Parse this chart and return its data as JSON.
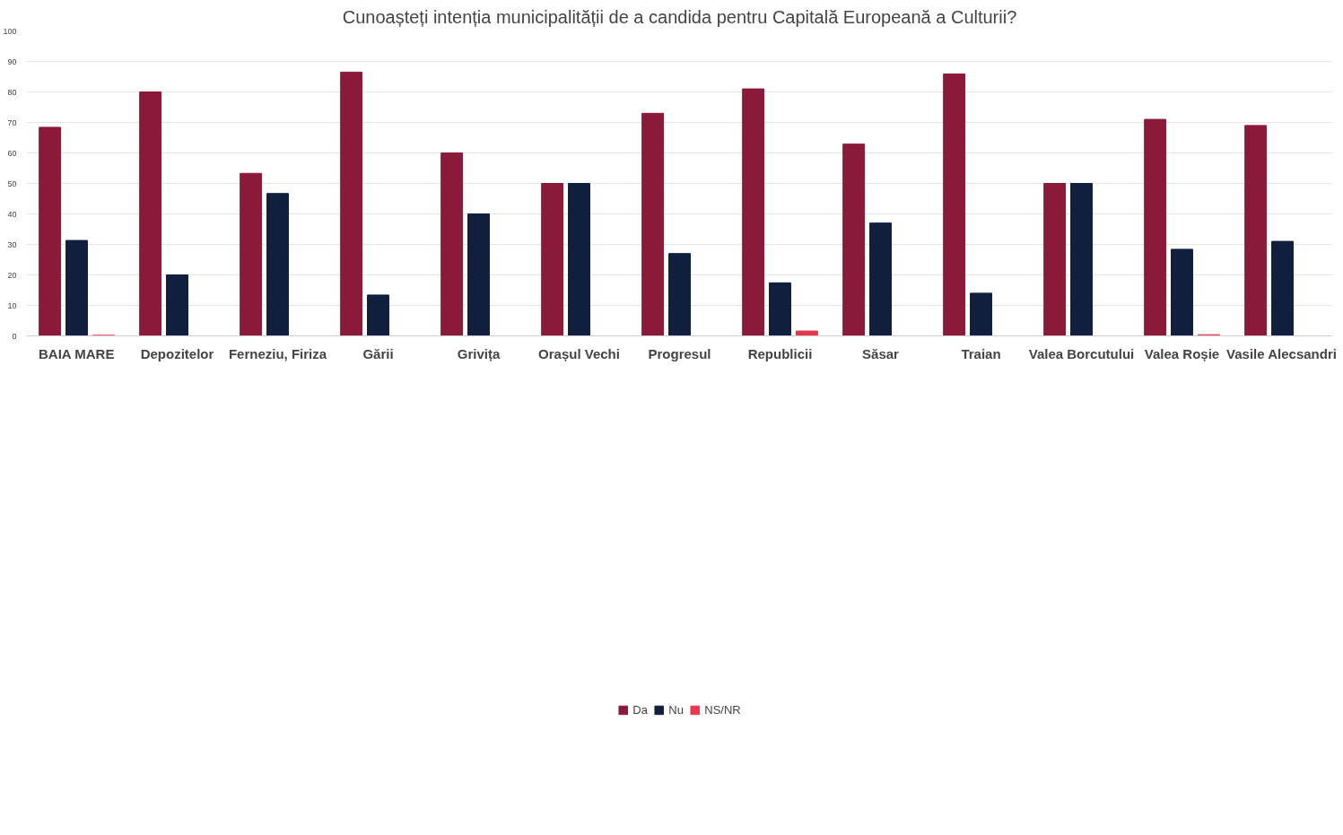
{
  "chart_data": {
    "type": "bar",
    "title": "Cunoașteți intenția municipalității de a candida pentru Capitală Europeană a Culturii?",
    "categories": [
      "BAIA MARE",
      "Depozitelor",
      "Ferneziu, Firiza",
      "Gării",
      "Grivița",
      "Orașul Vechi",
      "Progresul",
      "Republicii",
      "Săsar",
      "Traian",
      "Valea Borcutului",
      "Valea Roșie",
      "Vasile Alecsandri"
    ],
    "series": [
      {
        "name": "Da",
        "color": "#8b1a3a",
        "values": [
          68.4,
          80,
          53.3,
          86.5,
          60,
          50,
          73,
          81,
          62.9,
          85.9,
          50,
          71,
          69
        ]
      },
      {
        "name": "Nu",
        "color": "#0f1f3d",
        "values": [
          31.3,
          20,
          46.7,
          13.4,
          40,
          50,
          27,
          17.4,
          37,
          14,
          50,
          28.4,
          31
        ]
      },
      {
        "name": "NS/NR",
        "color": "#e8384f",
        "values": [
          0.2,
          null,
          null,
          null,
          null,
          null,
          null,
          1.6,
          null,
          null,
          null,
          0.4,
          null
        ]
      }
    ],
    "ylim": [
      0,
      100
    ],
    "yticks": [
      0,
      10,
      20,
      30,
      40,
      50,
      60,
      70,
      80,
      90,
      100
    ],
    "grid": "y",
    "legend": "bottom"
  }
}
